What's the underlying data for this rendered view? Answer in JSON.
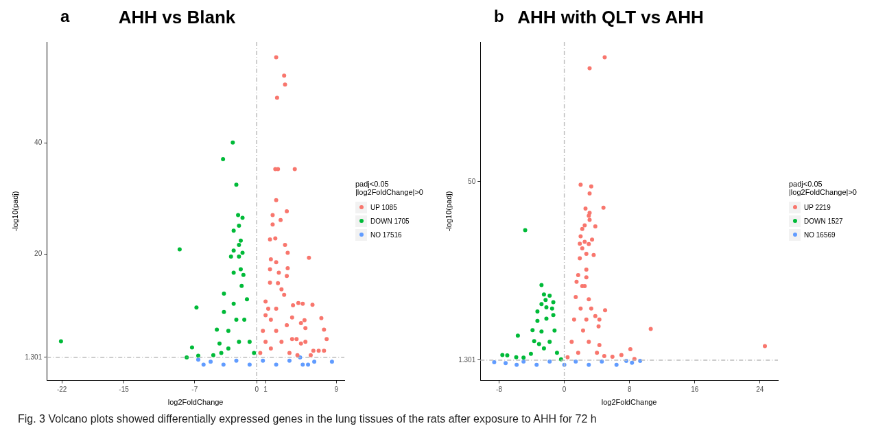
{
  "chart_data": [
    {
      "type": "scatter",
      "title": "AHH vs Blank",
      "xlabel": "log2FoldChange",
      "ylabel": "-log10(padj)",
      "legend_title": "padj<0.05\n|log2FoldChange|>0",
      "legend": "right",
      "grid": false,
      "marker": "circle",
      "annotations": [
        "a",
        "Fig. 3  Volcano plots showed differentially expressed genes in the lung tissues of the rats after exposure to AHH for 72 h"
      ],
      "xlim": [
        -23.7,
        9.9
      ],
      "ylim": [
        -2.9,
        58.3
      ],
      "xticks": [
        -22,
        -15,
        -7,
        0,
        1,
        9
      ],
      "yticks": [
        1.301,
        20,
        40
      ],
      "ref_lines": [
        {
          "axis": "y",
          "value": 1.301,
          "color": "#bdbdbd",
          "line_style": "dashed"
        },
        {
          "axis": "x",
          "value": 0,
          "color": "#bdbdbd",
          "line_style": "dashed"
        }
      ],
      "series": [
        {
          "name": "UP 1085",
          "color": "#f8766d",
          "x": [
            2.2,
            3.1,
            3.2,
            2.3,
            2.1,
            2.4,
            4.3,
            2.2,
            1.8,
            3.4,
            2.7,
            1.8,
            2.1,
            1.5,
            3.2,
            3.5,
            5.9,
            1.6,
            2.2,
            1.5,
            3.5,
            2.5,
            3.4,
            1.5,
            2.4,
            2.8,
            3.1,
            1.0,
            4.7,
            5.2,
            6.3,
            4.1,
            4.0,
            7.3,
            5.4,
            5.0,
            7.6,
            3.4,
            5.5,
            7.9,
            4.0,
            4.5,
            5.0,
            5.5,
            6.4,
            7.0,
            7.6,
            0.4,
            0.7,
            1.0,
            1.3,
            1.6,
            2.2,
            2.8,
            3.7,
            1.6,
            2.2,
            1.0,
            4.6,
            6.1
          ],
          "values": [
            55.5,
            52.2,
            50.6,
            48.2,
            35.3,
            35.3,
            35.3,
            29.7,
            27.0,
            27.7,
            26.1,
            25.3,
            22.8,
            22.6,
            21.6,
            20.2,
            19.3,
            19.0,
            18.5,
            17.2,
            17.4,
            16.6,
            16.0,
            14.8,
            14.7,
            13.6,
            12.6,
            11.4,
            11.1,
            11.0,
            10.8,
            10.7,
            8.5,
            8.4,
            8.0,
            7.5,
            6.3,
            7.1,
            6.6,
            4.6,
            4.6,
            4.6,
            3.8,
            4.1,
            2.5,
            2.5,
            2.5,
            2.1,
            6.1,
            8.9,
            10.1,
            8.1,
            6.1,
            4.1,
            2.1,
            2.9,
            10.1,
            4.1,
            1.7,
            1.7
          ]
        },
        {
          "name": "DOWN 1705",
          "color": "#00ba38",
          "x": [
            -22.1,
            -2.7,
            -3.8,
            -2.3,
            -8.7,
            -2.1,
            -1.6,
            -2.0,
            -2.6,
            -1.8,
            -2.0,
            -2.6,
            -1.6,
            -2.9,
            -2.0,
            -2.6,
            -1.8,
            -3.7,
            -6.8,
            -3.7,
            -4.5,
            -3.2,
            -4.2,
            -7.3,
            -7.9,
            -6.6,
            -1.7,
            -1.1,
            -1.4,
            -2.3,
            -0.8,
            -2.0,
            -3.2,
            -4.0,
            -4.9,
            -0.3,
            -2.6,
            -1.5
          ],
          "values": [
            4.2,
            40.1,
            37.1,
            32.5,
            20.8,
            27.0,
            26.5,
            25.1,
            24.2,
            22.4,
            21.6,
            20.6,
            20.2,
            19.5,
            19.5,
            16.6,
            17.2,
            12.8,
            10.3,
            9.5,
            6.3,
            6.1,
            3.8,
            3.1,
            1.3,
            1.6,
            14.2,
            11.8,
            8.1,
            8.1,
            4.1,
            4.1,
            2.9,
            2.1,
            1.7,
            2.1,
            11.0,
            16.2
          ]
        },
        {
          "name": "NO 17516",
          "color": "#619cff",
          "x": [
            -6.6,
            -6.0,
            -3.75,
            -0.8,
            2.2,
            5.2,
            5.8,
            6.5,
            8.5,
            4.9,
            -5.2,
            -2.3,
            0.7,
            3.7
          ],
          "values": [
            0.9,
            0,
            0,
            0,
            0,
            0,
            0,
            0.5,
            0.5,
            1.3,
            0.5,
            0.7,
            0.7,
            0.7
          ]
        }
      ]
    },
    {
      "type": "scatter",
      "title": "AHH with QLT vs AHH",
      "xlabel": "log2FoldChange",
      "ylabel": "-log10(padj)",
      "legend_title": "padj<0.05\n|log2FoldChange|>0",
      "legend": "right",
      "grid": false,
      "marker": "circle",
      "annotations": [
        "b"
      ],
      "xlim": [
        -10.3,
        26.2
      ],
      "ylim": [
        -4.3,
        88.2
      ],
      "xticks": [
        -8,
        0,
        8,
        16,
        24
      ],
      "yticks": [
        1.301,
        50
      ],
      "ref_lines": [
        {
          "axis": "y",
          "value": 1.301,
          "color": "#bdbdbd",
          "line_style": "dashed"
        },
        {
          "axis": "x",
          "value": 0,
          "color": "#bdbdbd",
          "line_style": "dashed"
        }
      ],
      "series": [
        {
          "name": "UP 2219",
          "color": "#f8766d",
          "x": [
            4.95,
            3.1,
            2.0,
            3.3,
            3.1,
            2.6,
            4.8,
            3.1,
            3.0,
            3.1,
            2.5,
            3.8,
            2.2,
            2.0,
            3.4,
            2.5,
            1.9,
            3.0,
            2.2,
            2.7,
            3.6,
            1.9,
            2.7,
            1.7,
            2.7,
            1.5,
            2.5,
            3.0,
            3.3,
            5.0,
            3.8,
            4.3,
            4.2,
            10.6,
            24.6,
            8.1,
            8.6,
            7.0,
            5.9,
            4.9,
            4.3,
            1.4,
            1.2,
            0.9,
            0.4,
            2.0,
            2.3,
            3.0,
            4.0,
            1.7,
            2.7,
            2.2
          ],
          "values": [
            84.0,
            81.0,
            49.2,
            48.7,
            46.8,
            42.7,
            42.9,
            41.5,
            40.7,
            39.6,
            38.1,
            37.8,
            37.1,
            35.1,
            34.2,
            33.6,
            33.1,
            33.0,
            31.8,
            30.3,
            30.0,
            29.1,
            26.0,
            24.5,
            23.9,
            22.7,
            21.5,
            17.9,
            15.4,
            14.9,
            13.3,
            12.4,
            10.5,
            9.8,
            5.1,
            4.3,
            1.6,
            2.7,
            2.2,
            2.4,
            5.4,
            18.5,
            12.4,
            6.3,
            2.1,
            15.4,
            9.4,
            6.3,
            3.3,
            3.3,
            12.4,
            21.5
          ]
        },
        {
          "name": "DOWN 1527",
          "color": "#00ba38",
          "x": [
            -4.8,
            -2.8,
            -2.5,
            -1.8,
            -2.3,
            -1.35,
            -2.8,
            -2.2,
            -3.3,
            -1.5,
            -2.2,
            -3.3,
            -3.9,
            -2.8,
            -5.7,
            -3.7,
            -7.6,
            -7.0,
            -5.9,
            -5.0,
            -1.35,
            -1.2,
            -1.8,
            -0.9,
            -2.5,
            -3.1,
            -4.1,
            -0.4
          ],
          "values": [
            36.8,
            21.8,
            19.2,
            18.9,
            17.7,
            17.1,
            16.6,
            15.7,
            14.6,
            15.4,
            12.6,
            12.0,
            9.5,
            9.1,
            8.0,
            6.5,
            2.7,
            2.6,
            2.1,
            2.0,
            13.6,
            9.4,
            6.3,
            3.3,
            4.5,
            5.7,
            3.0,
            1.5
          ]
        },
        {
          "name": "NO 16569",
          "color": "#619cff",
          "x": [
            -8.6,
            -7.2,
            -5.85,
            -3.4,
            0,
            3.0,
            6.4,
            7.6,
            8.3,
            9.3,
            -5.0,
            -1.8,
            1.4,
            4.6
          ],
          "values": [
            0.7,
            0.5,
            0,
            0,
            0,
            0,
            0,
            1.1,
            0.6,
            1.1,
            0.9,
            0.9,
            0.9,
            0.9
          ]
        }
      ]
    }
  ]
}
